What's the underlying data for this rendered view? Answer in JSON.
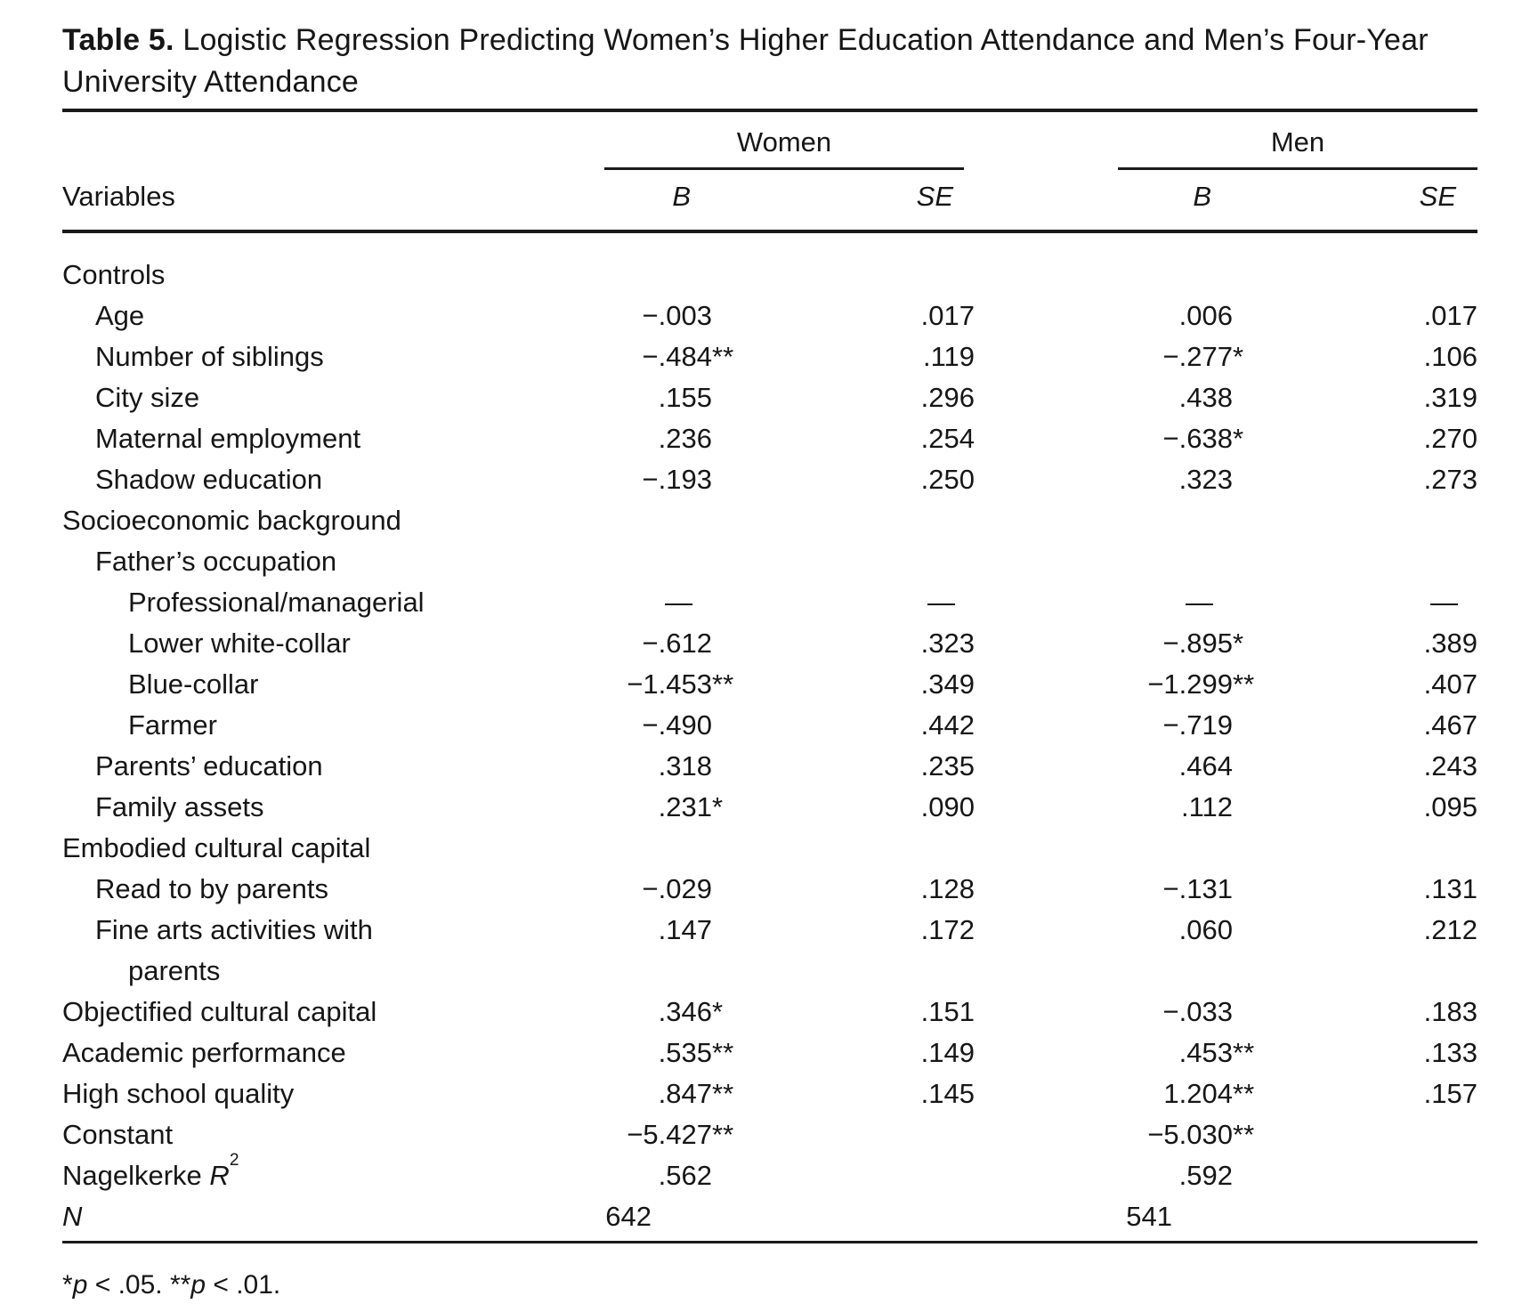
{
  "title": {
    "label": "Table 5.",
    "text": "Logistic Regression Predicting Women’s Higher Education Attendance and Men’s Four-Year University Attendance"
  },
  "columns": {
    "variables_header": "Variables",
    "groups": [
      {
        "name": "Women",
        "sub": [
          "B",
          "SE"
        ]
      },
      {
        "name": "Men",
        "sub": [
          "B",
          "SE"
        ]
      }
    ]
  },
  "rows": [
    {
      "label": "Controls",
      "indent": 0,
      "values": [
        "",
        "",
        "",
        ""
      ]
    },
    {
      "label": "Age",
      "indent": 1,
      "values": [
        "−.003",
        ".017",
        ".006",
        ".017"
      ]
    },
    {
      "label": "Number of siblings",
      "indent": 1,
      "values": [
        "−.484**",
        ".119",
        "−.277*",
        ".106"
      ]
    },
    {
      "label": "City size",
      "indent": 1,
      "values": [
        ".155",
        ".296",
        ".438",
        ".319"
      ]
    },
    {
      "label": "Maternal employment",
      "indent": 1,
      "values": [
        ".236",
        ".254",
        "−.638*",
        ".270"
      ]
    },
    {
      "label": "Shadow education",
      "indent": 1,
      "values": [
        "−.193",
        ".250",
        ".323",
        ".273"
      ]
    },
    {
      "label": "Socioeconomic background",
      "indent": 0,
      "values": [
        "",
        "",
        "",
        ""
      ]
    },
    {
      "label": "Father’s occupation",
      "indent": 1,
      "values": [
        "",
        "",
        "",
        ""
      ]
    },
    {
      "label": "Professional/managerial",
      "indent": 2,
      "values": [
        "—",
        "—",
        "—",
        "—"
      ]
    },
    {
      "label": "Lower white-collar",
      "indent": 2,
      "values": [
        "−.612",
        ".323",
        "−.895*",
        ".389"
      ]
    },
    {
      "label": "Blue-collar",
      "indent": 2,
      "values": [
        "−1.453**",
        ".349",
        "−1.299**",
        ".407"
      ]
    },
    {
      "label": "Farmer",
      "indent": 2,
      "values": [
        "−.490",
        ".442",
        "−.719",
        ".467"
      ]
    },
    {
      "label": "Parents’ education",
      "indent": 1,
      "values": [
        ".318",
        ".235",
        ".464",
        ".243"
      ]
    },
    {
      "label": "Family assets",
      "indent": 1,
      "values": [
        ".231*",
        ".090",
        ".112",
        ".095"
      ]
    },
    {
      "label": "Embodied cultural capital",
      "indent": 0,
      "values": [
        "",
        "",
        "",
        ""
      ]
    },
    {
      "label": "Read to by parents",
      "indent": 1,
      "values": [
        "−.029",
        ".128",
        "−.131",
        ".131"
      ]
    },
    {
      "label": "Fine arts activities with",
      "label_line2": "parents",
      "indent": 1,
      "values": [
        ".147",
        ".172",
        ".060",
        ".212"
      ]
    },
    {
      "label": "Objectified cultural capital",
      "indent": 0,
      "values": [
        ".346*",
        ".151",
        "−.033",
        ".183"
      ]
    },
    {
      "label": "Academic performance",
      "indent": 0,
      "values": [
        ".535**",
        ".149",
        ".453**",
        ".133"
      ]
    },
    {
      "label": "High school quality",
      "indent": 0,
      "values": [
        ".847**",
        ".145",
        "1.204**",
        ".157"
      ]
    },
    {
      "label": "Constant",
      "indent": 0,
      "values": [
        "−5.427**",
        "",
        "−5.030**",
        ""
      ]
    },
    {
      "label_parts": [
        {
          "t": "Nagelkerke "
        },
        {
          "t": "R",
          "i": true
        },
        {
          "t": "2",
          "sup": true
        }
      ],
      "indent": 0,
      "values": [
        ".562",
        "",
        ".592",
        ""
      ]
    },
    {
      "label_parts": [
        {
          "t": "N",
          "i": true
        }
      ],
      "indent": 0,
      "values": [
        "642",
        "",
        "541",
        ""
      ]
    }
  ],
  "footnote_parts": [
    {
      "t": "*"
    },
    {
      "t": "p",
      "i": true
    },
    {
      "t": " < .05. "
    },
    {
      "t": "**"
    },
    {
      "t": "p",
      "i": true
    },
    {
      "t": " < .01."
    }
  ]
}
